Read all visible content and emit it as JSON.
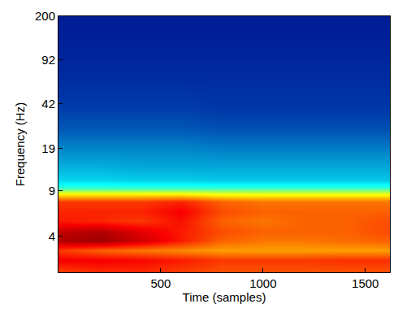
{
  "chart_data": {
    "type": "heatmap",
    "xlabel": "Time (samples)",
    "ylabel": "Frequency (Hz)",
    "log": "y",
    "xlim": [
      0,
      1620
    ],
    "ylim": [
      2.1,
      200
    ],
    "xticks": [
      500,
      1000,
      1500
    ],
    "yticks": [
      4,
      9,
      19,
      42,
      92,
      200
    ],
    "zlim": [
      0,
      1
    ],
    "x": [
      0,
      200,
      400,
      600,
      800,
      1000,
      1200,
      1400,
      1600
    ],
    "y": [
      2.2,
      2.6,
      3.1,
      3.7,
      4.3,
      5.2,
      6.2,
      7.4,
      8.5,
      9.5,
      11,
      14,
      19,
      27,
      42,
      70,
      120,
      200
    ],
    "z": [
      [
        0.82,
        0.84,
        0.84,
        0.82,
        0.8,
        0.8,
        0.8,
        0.8,
        0.8
      ],
      [
        0.88,
        0.88,
        0.87,
        0.85,
        0.82,
        0.82,
        0.82,
        0.83,
        0.83
      ],
      [
        0.82,
        0.78,
        0.76,
        0.74,
        0.72,
        0.72,
        0.72,
        0.72,
        0.72
      ],
      [
        0.95,
        0.97,
        0.92,
        0.85,
        0.78,
        0.76,
        0.76,
        0.77,
        0.78
      ],
      [
        0.93,
        0.95,
        0.9,
        0.85,
        0.8,
        0.78,
        0.78,
        0.78,
        0.8
      ],
      [
        0.85,
        0.84,
        0.82,
        0.86,
        0.78,
        0.76,
        0.78,
        0.78,
        0.8
      ],
      [
        0.84,
        0.84,
        0.84,
        0.88,
        0.8,
        0.78,
        0.78,
        0.78,
        0.78
      ],
      [
        0.82,
        0.82,
        0.82,
        0.84,
        0.78,
        0.76,
        0.76,
        0.76,
        0.76
      ],
      [
        0.62,
        0.62,
        0.62,
        0.62,
        0.6,
        0.6,
        0.6,
        0.6,
        0.6
      ],
      [
        0.42,
        0.42,
        0.42,
        0.42,
        0.42,
        0.42,
        0.42,
        0.42,
        0.42
      ],
      [
        0.32,
        0.32,
        0.31,
        0.31,
        0.3,
        0.3,
        0.3,
        0.3,
        0.3
      ],
      [
        0.27,
        0.27,
        0.26,
        0.26,
        0.26,
        0.26,
        0.26,
        0.26,
        0.26
      ],
      [
        0.22,
        0.22,
        0.22,
        0.22,
        0.21,
        0.21,
        0.21,
        0.21,
        0.21
      ],
      [
        0.16,
        0.16,
        0.16,
        0.16,
        0.15,
        0.15,
        0.15,
        0.15,
        0.15
      ],
      [
        0.12,
        0.12,
        0.12,
        0.12,
        0.11,
        0.11,
        0.11,
        0.11,
        0.11
      ],
      [
        0.09,
        0.09,
        0.09,
        0.09,
        0.09,
        0.09,
        0.09,
        0.09,
        0.09
      ],
      [
        0.07,
        0.07,
        0.07,
        0.07,
        0.07,
        0.07,
        0.07,
        0.07,
        0.07
      ],
      [
        0.06,
        0.06,
        0.06,
        0.06,
        0.06,
        0.06,
        0.06,
        0.06,
        0.06
      ]
    ]
  }
}
